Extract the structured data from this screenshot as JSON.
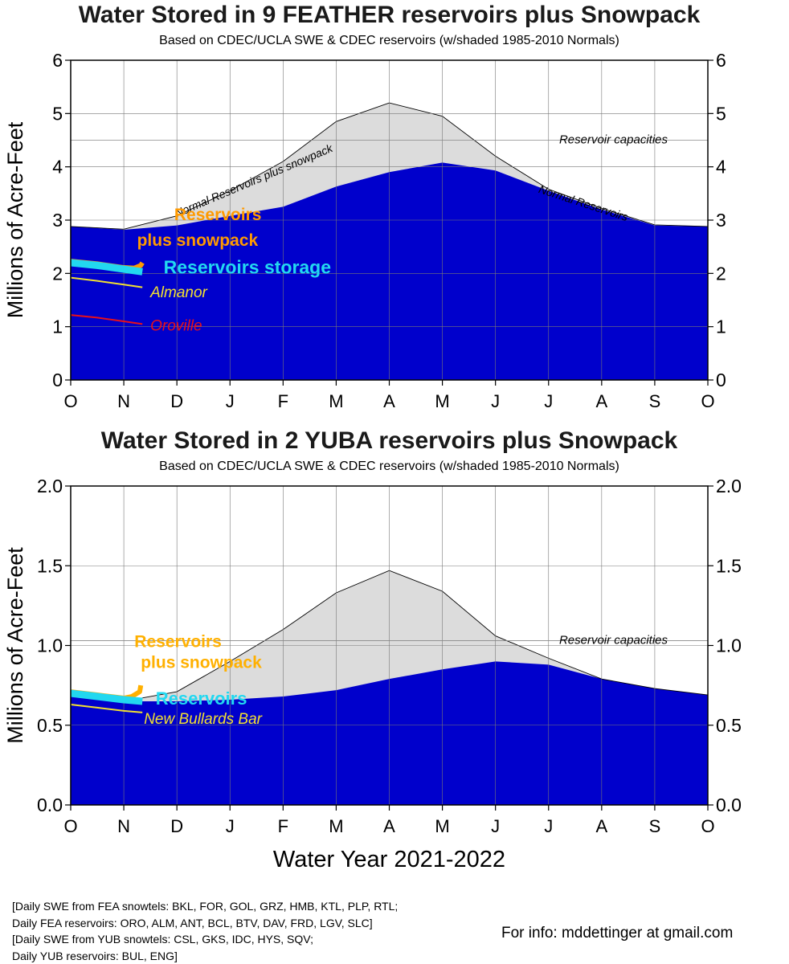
{
  "chart_data": [
    {
      "type": "area",
      "title": "Water Stored in 9 FEATHER reservoirs plus Snowpack",
      "subtitle": "Based on CDEC/UCLA SWE & CDEC reservoirs (w/shaded 1985-2010 Normals)",
      "ylabel": "Millions of Acre-Feet",
      "xlabel": "",
      "x_ticks": [
        "O",
        "N",
        "D",
        "J",
        "F",
        "M",
        "A",
        "M",
        "J",
        "J",
        "A",
        "S",
        "O"
      ],
      "xlim": [
        0,
        12
      ],
      "ylim": [
        0,
        6
      ],
      "y_ticks": [
        "0",
        "1",
        "2",
        "3",
        "4",
        "5",
        "6"
      ],
      "grid": true,
      "reservoir_capacity": 4.5,
      "reservoir_capacity_label": "Reservoir capacities",
      "normal_reservoirs_plus_snowpack": {
        "label": "Normal Reservoirs plus snowpack",
        "x": [
          0,
          1,
          2,
          3,
          4,
          5,
          6,
          7,
          8,
          9,
          10,
          11,
          12
        ],
        "y": [
          2.88,
          2.83,
          3.08,
          3.55,
          4.1,
          4.85,
          5.2,
          4.95,
          4.2,
          3.58,
          3.22,
          2.91,
          2.88
        ]
      },
      "normal_reservoirs": {
        "label": "Normal Reservoirs",
        "x": [
          0,
          1,
          2,
          3,
          4,
          5,
          6,
          7,
          8,
          9,
          10,
          11,
          12
        ],
        "y": [
          2.88,
          2.82,
          2.9,
          3.08,
          3.25,
          3.63,
          3.9,
          4.08,
          3.93,
          3.55,
          3.2,
          2.9,
          2.88
        ]
      },
      "series": [
        {
          "name": "Reservoirs plus snowpack",
          "color": "#ff9a00",
          "x": [
            0,
            0.5,
            1.0,
            1.2,
            1.32,
            1.35
          ],
          "y": [
            2.23,
            2.18,
            2.11,
            2.1,
            2.15,
            2.2
          ]
        },
        {
          "name": "Reservoirs storage",
          "color": "#22d8f0",
          "x": [
            0,
            0.5,
            1.0,
            1.35
          ],
          "y": [
            2.2,
            2.15,
            2.08,
            2.03
          ]
        },
        {
          "name": "Almanor",
          "color": "#f2e030",
          "x": [
            0,
            0.5,
            1.0,
            1.35
          ],
          "y": [
            1.92,
            1.86,
            1.79,
            1.74
          ]
        },
        {
          "name": "Oroville",
          "color": "#e8101a",
          "x": [
            0,
            0.5,
            1.0,
            1.35
          ],
          "y": [
            1.22,
            1.17,
            1.1,
            1.05
          ]
        }
      ],
      "labels": [
        {
          "text": "Reservoirs",
          "color": "#ff9a00"
        },
        {
          "text": "plus snowpack",
          "color": "#ff9a00"
        },
        {
          "text": "Reservoirs storage",
          "color": "#22d8f0"
        },
        {
          "text": "Almanor",
          "color": "#f2e030"
        },
        {
          "text": "Oroville",
          "color": "#e8101a"
        }
      ]
    },
    {
      "type": "area",
      "title": "Water Stored in 2 YUBA reservoirs plus Snowpack",
      "subtitle": "Based on CDEC/UCLA SWE & CDEC reservoirs (w/shaded 1985-2010 Normals)",
      "ylabel": "Millions of Acre-Feet",
      "xlabel": "Water Year 2021-2022",
      "x_ticks": [
        "O",
        "N",
        "D",
        "J",
        "F",
        "M",
        "A",
        "M",
        "J",
        "J",
        "A",
        "S",
        "O"
      ],
      "xlim": [
        0,
        12
      ],
      "ylim": [
        0,
        2.0
      ],
      "y_ticks": [
        "0.0",
        "0.5",
        "1.0",
        "1.5",
        "2.0"
      ],
      "grid": true,
      "reservoir_capacity": 1.03,
      "reservoir_capacity_label": "Reservoir capacities",
      "normal_reservoirs_plus_snowpack": {
        "label": "",
        "x": [
          0,
          1,
          2,
          3,
          4,
          5,
          6,
          7,
          8,
          9,
          10,
          11,
          12
        ],
        "y": [
          0.69,
          0.65,
          0.71,
          0.9,
          1.1,
          1.33,
          1.47,
          1.34,
          1.06,
          0.92,
          0.79,
          0.73,
          0.69
        ]
      },
      "normal_reservoirs": {
        "label": "",
        "x": [
          0,
          1,
          2,
          3,
          4,
          5,
          6,
          7,
          8,
          9,
          10,
          11,
          12
        ],
        "y": [
          0.69,
          0.65,
          0.65,
          0.66,
          0.68,
          0.72,
          0.79,
          0.85,
          0.9,
          0.88,
          0.79,
          0.73,
          0.69
        ]
      },
      "series": [
        {
          "name": "Reservoirs plus snowpack",
          "color": "#ffb000",
          "x": [
            0,
            0.5,
            1.0,
            1.15,
            1.3,
            1.32
          ],
          "y": [
            0.71,
            0.69,
            0.67,
            0.68,
            0.71,
            0.75
          ]
        },
        {
          "name": "Reservoirs",
          "color": "#22d8f0",
          "x": [
            0,
            0.5,
            1.0,
            1.35
          ],
          "y": [
            0.7,
            0.68,
            0.66,
            0.65
          ]
        },
        {
          "name": "New Bullards Bar",
          "color": "#f2e030",
          "x": [
            0,
            0.5,
            1.0,
            1.35
          ],
          "y": [
            0.63,
            0.61,
            0.59,
            0.58
          ]
        }
      ],
      "labels": [
        {
          "text": "Reservoirs",
          "color": "#ffb000"
        },
        {
          "text": "plus snowpack",
          "color": "#ffb000"
        },
        {
          "text": "Reservoirs",
          "color": "#22d8f0"
        },
        {
          "text": "New Bullards Bar",
          "color": "#f2e030"
        }
      ]
    }
  ],
  "footer": {
    "lines": [
      "[Daily SWE from FEA snowtels: BKL, FOR, GOL, GRZ, HMB, KTL, PLP, RTL;",
      "Daily FEA reservoirs: ORO, ALM, ANT, BCL, BTV, DAV, FRD, LGV, SLC]",
      "[Daily SWE from YUB snowtels: CSL, GKS, IDC, HYS, SQV;",
      "Daily YUB reservoirs: BUL, ENG]"
    ],
    "contact": "For info: mddettinger at gmail.com"
  },
  "colors": {
    "reservoir_fill": "#0000cc",
    "normal_fill": "#dcdcdc"
  }
}
